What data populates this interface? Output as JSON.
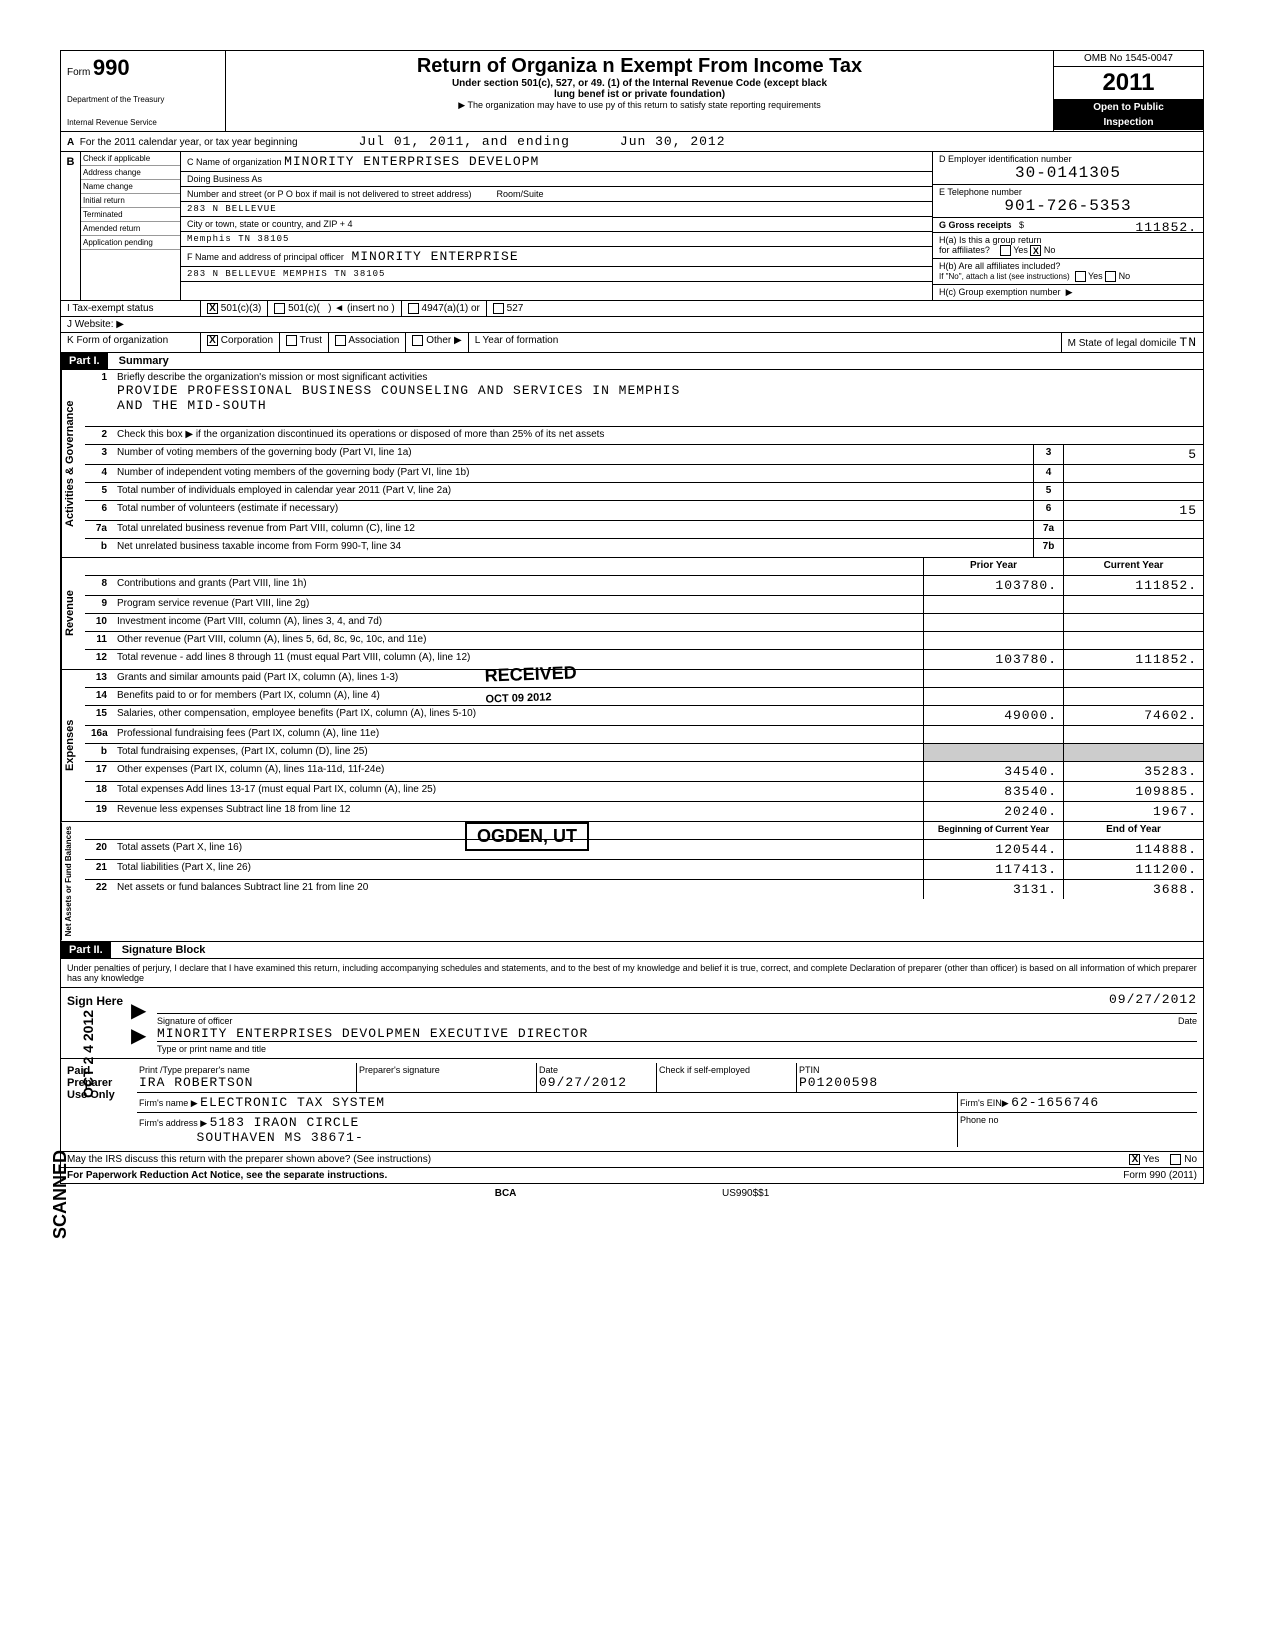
{
  "header": {
    "form_label": "Form",
    "form_number": "990",
    "dept1": "Department of the Treasury",
    "dept2": "Internal Revenue Service",
    "title": "Return of Organiza     n Exempt From Income Tax",
    "subtitle1": "Under section 501(c), 527, or 49.    (1) of the Internal Revenue Code (except black",
    "subtitle2": "lung benef     ist or private foundation)",
    "subtitle3": "▶ The organization may have to use     py of this return to satisfy state reporting requirements",
    "omb": "OMB No 1545-0047",
    "year": "2011",
    "open": "Open to Public",
    "inspection": "Inspection"
  },
  "row_a": {
    "label": "For the 2011 calendar year, or tax year beginning",
    "start": "Jul  01, 2011, and ending",
    "end": "Jun 30, 2012"
  },
  "section_b": {
    "checks": [
      "Check if applicable",
      "Address change",
      "Name change",
      "Initial return",
      "Terminated",
      "Amended return",
      "Application pending"
    ],
    "c_label": "C Name of organization",
    "org_name": "MINORITY ENTERPRISES DEVELOPM",
    "dba": "Doing Business As",
    "addr_label": "Number and street (or P O box if mail is not delivered to street address)",
    "room": "Room/Suite",
    "address": "283  N  BELLEVUE",
    "city_label": "City or town, state or country, and ZIP + 4",
    "city": "Memphis TN 38105",
    "f_label": "F   Name and address of principal officer",
    "officer": "MINORITY  ENTERPRISE",
    "officer_addr": "283  N  BELLEVUE  MEMPHIS       TN  38105",
    "d_label": "D Employer identification number",
    "ein": "30-0141305",
    "e_label": "E Telephone number",
    "phone": "901-726-5353",
    "g_label": "G Gross receipts",
    "g_val": "111852.",
    "ha": "H(a)  Is this a group return",
    "ha2": "for affiliates?",
    "hb": "H(b)  Are all affiliates included?",
    "hb2": "If \"No\", attach a list (see instructions)",
    "hc": "H(c)  Group exemption number"
  },
  "row_i": {
    "label": "I  Tax-exempt status",
    "opt1": "501(c)(3)",
    "opt2": "501(c)(",
    "opt2b": ") ◄ (insert no )",
    "opt3": "4947(a)(1) or",
    "opt4": "527"
  },
  "row_j": "J  Website: ▶",
  "row_k": {
    "label": "K Form of organization",
    "corp": "Corporation",
    "trust": "Trust",
    "assoc": "Association",
    "other": "Other ▶",
    "l_label": "L  Year of formation",
    "m_label": "M State of legal domicile",
    "state": "TN"
  },
  "part1": {
    "header": "Part I.",
    "title": "Summary",
    "line1_label": "Briefly describe the organization's mission or most significant activities",
    "mission": "PROVIDE PROFESSIONAL BUSINESS COUNSELING AND SERVICES IN MEMPHIS",
    "mission2": "AND THE MID-SOUTH",
    "line2": "Check this box ▶      if the organization discontinued its operations or disposed of more than 25% of its net assets",
    "lines": [
      {
        "num": "3",
        "desc": "Number of voting members of the governing body (Part VI, line 1a)",
        "box": "3",
        "val": "5"
      },
      {
        "num": "4",
        "desc": "Number of independent voting members of the governing body (Part VI, line 1b)",
        "box": "4",
        "val": ""
      },
      {
        "num": "5",
        "desc": "Total number of individuals employed in calendar year 2011 (Part V, line 2a)",
        "box": "5",
        "val": ""
      },
      {
        "num": "6",
        "desc": "Total number of volunteers (estimate if necessary)",
        "box": "6",
        "val": "15"
      },
      {
        "num": "7a",
        "desc": "Total unrelated business revenue from Part VIII, column (C), line 12",
        "box": "7a",
        "val": ""
      },
      {
        "num": "b",
        "desc": "Net unrelated business taxable income from Form 990-T, line 34",
        "box": "7b",
        "val": ""
      }
    ],
    "prior_year": "Prior Year",
    "current_year": "Current Year",
    "revenue_lines": [
      {
        "num": "8",
        "desc": "Contributions and grants (Part VIII, line 1h)",
        "prior": "103780.",
        "curr": "111852."
      },
      {
        "num": "9",
        "desc": "Program service revenue (Part VIII, line 2g)",
        "prior": "",
        "curr": ""
      },
      {
        "num": "10",
        "desc": "Investment income (Part VIII, column (A), lines 3, 4, and 7d)",
        "prior": "",
        "curr": ""
      },
      {
        "num": "11",
        "desc": "Other revenue (Part VIII, column (A), lines 5, 6d, 8c, 9c, 10c, and 11e)",
        "prior": "",
        "curr": ""
      },
      {
        "num": "12",
        "desc": "Total revenue - add lines 8 through 11 (must equal Part VIII, column (A), line 12)",
        "prior": "103780.",
        "curr": "111852."
      }
    ],
    "expense_lines": [
      {
        "num": "13",
        "desc": "Grants and similar amounts paid (Part IX, column (A), lines 1-3)",
        "prior": "",
        "curr": ""
      },
      {
        "num": "14",
        "desc": "Benefits paid to or for members (Part IX, column (A), line 4)",
        "prior": "",
        "curr": ""
      },
      {
        "num": "15",
        "desc": "Salaries, other compensation, employee benefits (Part IX, column (A), lines 5-10)",
        "prior": "49000.",
        "curr": "74602."
      },
      {
        "num": "16a",
        "desc": "Professional fundraising fees (Part IX, column (A), line 11e)",
        "prior": "",
        "curr": ""
      },
      {
        "num": "b",
        "desc": "Total fundraising expenses, (Part IX, column (D), line 25)",
        "prior": "",
        "curr": ""
      },
      {
        "num": "17",
        "desc": "Other expenses (Part IX, column (A), lines 11a-11d, 11f-24e)",
        "prior": "34540.",
        "curr": "35283."
      },
      {
        "num": "18",
        "desc": "Total expenses  Add lines 13-17 (must equal Part IX, column (A), line 25)",
        "prior": "83540.",
        "curr": "109885."
      },
      {
        "num": "19",
        "desc": "Revenue less expenses   Subtract line 18 from line 12",
        "prior": "20240.",
        "curr": "1967."
      }
    ],
    "begin_year": "Beginning of Current Year",
    "end_year": "End of Year",
    "asset_lines": [
      {
        "num": "20",
        "desc": "Total assets (Part X, line 16)",
        "prior": "120544.",
        "curr": "114888."
      },
      {
        "num": "21",
        "desc": "Total liabilities (Part X, line 26)",
        "prior": "117413.",
        "curr": "111200."
      },
      {
        "num": "22",
        "desc": "Net assets or fund balances   Subtract line 21 from line 20",
        "prior": "3131.",
        "curr": "3688."
      }
    ]
  },
  "part2": {
    "header": "Part II.",
    "title": "Signature Block",
    "declaration": "Under penalties of perjury, I declare that I have examined this return, including accompanying schedules and statements, and to the best of my knowledge and belief it is true, correct, and complete  Declaration of preparer (other than officer) is based on all information of which preparer has any knowledge",
    "sign_here": "Sign Here",
    "sig_label": "Signature of officer",
    "date_label": "Date",
    "sig_date": "09/27/2012",
    "name_title": "MINORITY ENTERPRISES DEVOLPMEN    EXECUTIVE DIRECTOR",
    "type_label": "Type or print name and title",
    "paid_label": "Paid Preparer Use Only",
    "prep_name_label": "Print /Type preparer's name",
    "prep_name": "IRA ROBERTSON",
    "prep_sig_label": "Preparer's signature",
    "prep_date": "09/27/2012",
    "check_label": "Check       if self-employed",
    "ptin_label": "PTIN",
    "ptin": "P01200598",
    "firm_name_label": "Firm's name    ▶",
    "firm_name": "ELECTRONIC TAX SYSTEM",
    "firm_ein_label": "Firm's EIN▶",
    "firm_ein": "62-1656746",
    "firm_addr_label": "Firm's address ▶",
    "firm_addr": "5183 IRAON CIRCLE",
    "firm_addr2": "SOUTHAVEN MS 38671-",
    "phone_label": "Phone no",
    "discuss": "May the IRS discuss this return with the preparer shown above? (See instructions)"
  },
  "footer": {
    "paperwork": "For Paperwork Reduction Act Notice, see the separate instructions.",
    "code": "US990$$1",
    "form": "Form 990 (2011)"
  },
  "stamps": {
    "received": "RECEIVED",
    "received_date": "OCT 09 2012",
    "ogden": "OGDEN, UT",
    "scanned": "SCANNED",
    "side_date": "OCT 2 4 2012"
  },
  "vert": {
    "gov": "Activities & Governance",
    "rev": "Revenue",
    "exp": "Expenses",
    "net": "Net Assets or Fund Balances"
  }
}
